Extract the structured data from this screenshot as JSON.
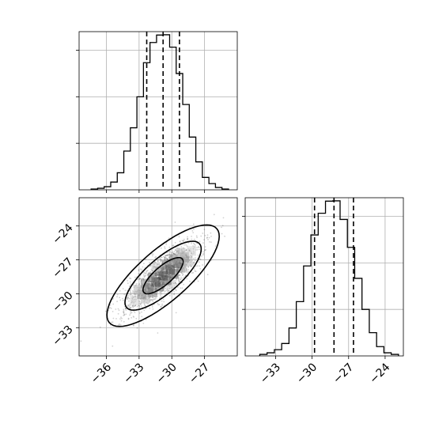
{
  "chart_data": [
    {
      "type": "histogram",
      "panel": "top-left",
      "variable": "x",
      "xlim": [
        -38.5,
        -24.0
      ],
      "ylim": [
        0,
        1.0
      ],
      "grid": true,
      "histtype": "step",
      "color": "#000000",
      "bin_edges": [
        -37.4,
        -36.8,
        -36.2,
        -35.6,
        -35.0,
        -34.4,
        -33.8,
        -33.2,
        -32.6,
        -32.0,
        -31.4,
        -30.8,
        -30.2,
        -29.6,
        -29.0,
        -28.4,
        -27.8,
        -27.2,
        -26.6,
        -26.0,
        -25.4,
        -24.8
      ],
      "counts": [
        0.005,
        0.01,
        0.02,
        0.05,
        0.11,
        0.25,
        0.4,
        0.6,
        0.82,
        0.95,
        0.998,
        1.0,
        0.92,
        0.75,
        0.55,
        0.34,
        0.18,
        0.08,
        0.04,
        0.015,
        0.005
      ],
      "quantiles": [
        -32.3,
        -30.8,
        -29.3
      ]
    },
    {
      "type": "scatter-contour",
      "panel": "bottom-left",
      "xvar": "x",
      "yvar": "y",
      "xlim": [
        -38.5,
        -24.0
      ],
      "ylim": [
        -35.5,
        -21.5
      ],
      "grid": true,
      "color": "#000000",
      "mean": [
        -30.8,
        -28.4
      ],
      "contour_levels": 3,
      "xtick_labels": [
        "−36",
        "−33",
        "−30",
        "−27"
      ],
      "xticks": [
        -36,
        -33,
        -30,
        -27
      ],
      "ytick_labels": [
        "−24",
        "−27",
        "−30",
        "−33"
      ],
      "yticks": [
        -24,
        -27,
        -30,
        -33
      ]
    },
    {
      "type": "histogram",
      "panel": "bottom-right",
      "variable": "y",
      "xlim": [
        -35.5,
        -22.5
      ],
      "ylim": [
        0,
        1.0
      ],
      "grid": true,
      "histtype": "step",
      "color": "#000000",
      "bin_edges": [
        -34.3,
        -33.7,
        -33.1,
        -32.5,
        -31.9,
        -31.3,
        -30.7,
        -30.1,
        -29.5,
        -28.9,
        -28.3,
        -27.7,
        -27.1,
        -26.5,
        -25.9,
        -25.3,
        -24.7,
        -24.1,
        -23.5,
        -22.9
      ],
      "counts": [
        0.01,
        0.02,
        0.04,
        0.08,
        0.18,
        0.35,
        0.58,
        0.78,
        0.92,
        0.998,
        1.0,
        0.88,
        0.7,
        0.5,
        0.3,
        0.15,
        0.06,
        0.02,
        0.01
      ],
      "quantiles": [
        -29.8,
        -28.2,
        -26.6
      ],
      "xtick_labels": [
        "−33",
        "−30",
        "−27",
        "−24"
      ],
      "xticks": [
        -33,
        -30,
        -27,
        -24
      ]
    }
  ]
}
